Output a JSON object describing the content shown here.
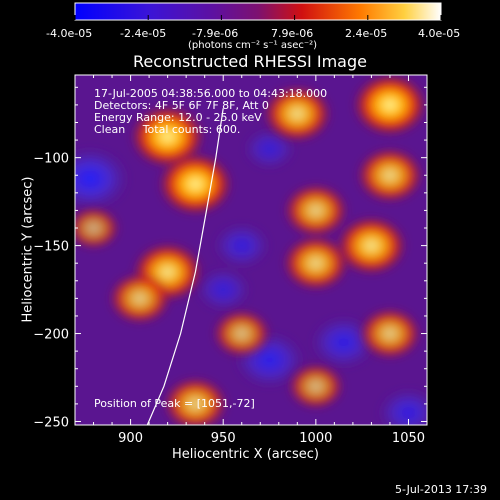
{
  "colorbar": {
    "ticks": [
      "-4.0e-05",
      "-2.4e-05",
      "-7.9e-06",
      "7.9e-06",
      "2.4e-05",
      "4.0e-05"
    ],
    "unit_label": "(photons cm⁻² s⁻¹ asec⁻²)"
  },
  "chart_data": {
    "type": "heatmap",
    "title": "Reconstructed RHESSI Image",
    "xlabel": "Heliocentric X (arcsec)",
    "ylabel": "Heliocentric Y (arcsec)",
    "xlim": [
      870,
      1060
    ],
    "ylim": [
      -252,
      -53
    ],
    "xticks": [
      900,
      950,
      1000,
      1050
    ],
    "yticks": [
      -100,
      -150,
      -200,
      -250
    ],
    "colorscale_range": [
      -4e-05,
      4e-05
    ],
    "peak": {
      "x": 1051,
      "y": -72
    },
    "limb_curve": [
      [
        909,
        -252
      ],
      [
        918,
        -230
      ],
      [
        927,
        -200
      ],
      [
        935,
        -165
      ],
      [
        941,
        -130
      ],
      [
        946,
        -100
      ],
      [
        950,
        -72
      ]
    ],
    "bright_regions": [
      {
        "x": 920,
        "y": -88,
        "intensity": 1.0
      },
      {
        "x": 935,
        "y": -115,
        "intensity": 1.0
      },
      {
        "x": 920,
        "y": -165,
        "intensity": 0.9
      },
      {
        "x": 905,
        "y": -180,
        "intensity": 0.7
      },
      {
        "x": 990,
        "y": -75,
        "intensity": 0.85
      },
      {
        "x": 1040,
        "y": -70,
        "intensity": 1.0
      },
      {
        "x": 1000,
        "y": -130,
        "intensity": 0.75
      },
      {
        "x": 1030,
        "y": -150,
        "intensity": 0.9
      },
      {
        "x": 1000,
        "y": -160,
        "intensity": 0.8
      },
      {
        "x": 1040,
        "y": -200,
        "intensity": 0.7
      },
      {
        "x": 935,
        "y": -240,
        "intensity": 0.75
      },
      {
        "x": 960,
        "y": -200,
        "intensity": 0.6
      },
      {
        "x": 1000,
        "y": -230,
        "intensity": 0.55
      },
      {
        "x": 880,
        "y": -140,
        "intensity": 0.45
      },
      {
        "x": 1040,
        "y": -110,
        "intensity": 0.8
      }
    ],
    "dark_regions": [
      {
        "x": 878,
        "y": -112,
        "intensity": 0.9
      },
      {
        "x": 960,
        "y": -150,
        "intensity": 0.4
      },
      {
        "x": 975,
        "y": -215,
        "intensity": 0.7
      },
      {
        "x": 1015,
        "y": -205,
        "intensity": 0.6
      },
      {
        "x": 1050,
        "y": -245,
        "intensity": 0.5
      },
      {
        "x": 975,
        "y": -95,
        "intensity": 0.3
      },
      {
        "x": 950,
        "y": -175,
        "intensity": 0.35
      }
    ]
  },
  "info": {
    "line1": "17-Jul-2005 04:38:56.000 to 04:43:18.000",
    "line2": "Detectors: 4F 5F 6F 7F 8F, Att 0",
    "line3": "Energy Range: 12.0 - 25.0 keV",
    "line4": "Clean     Total counts: 600.",
    "peak_text": "Position of Peak = [1051,-72]"
  },
  "footer": {
    "timestamp": "5-Jul-2013 17:39"
  }
}
